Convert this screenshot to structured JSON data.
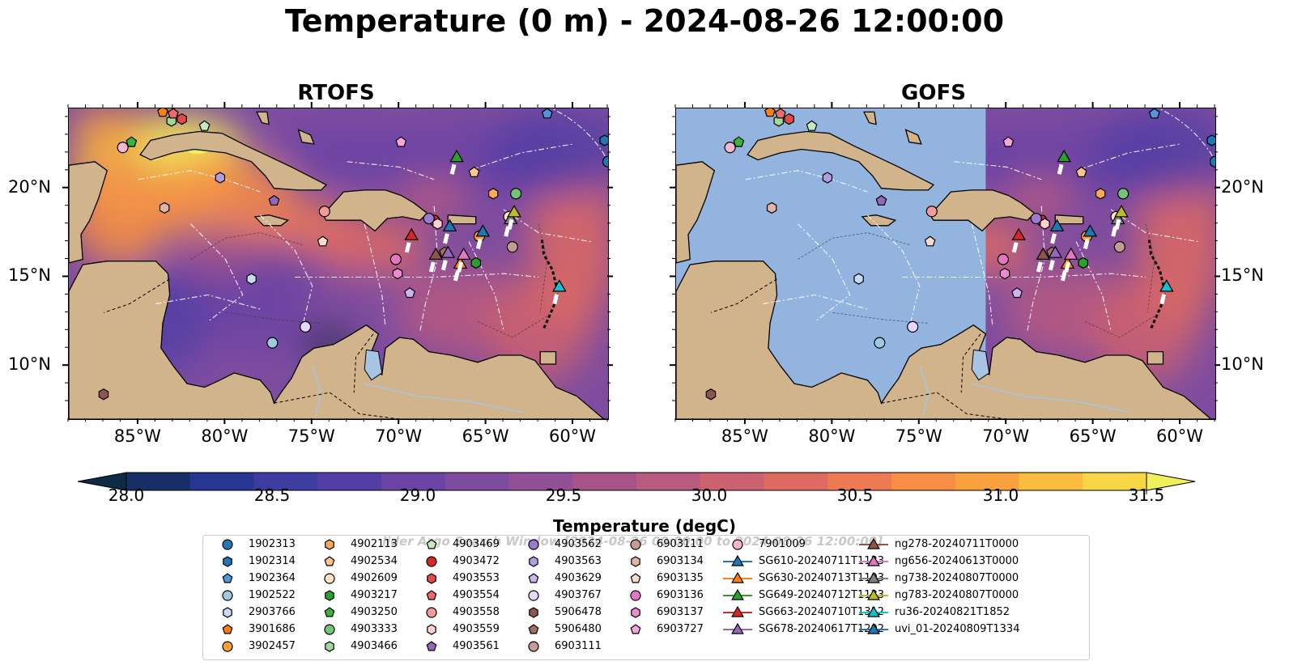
{
  "title": "Temperature (0 m) - 2024-08-26 12:00:00",
  "panels": [
    {
      "id": "rtofs",
      "title": "RTOFS"
    },
    {
      "id": "gofs",
      "title": "GOFS"
    }
  ],
  "axes": {
    "x_ticks": [
      "85°W",
      "80°W",
      "75°W",
      "70°W",
      "65°W",
      "60°W"
    ],
    "y_ticks": [
      "20°N",
      "15°N",
      "10°N"
    ]
  },
  "colorbar": {
    "label": "Temperature (degC)",
    "ticks": [
      "28.0",
      "28.5",
      "29.0",
      "29.5",
      "30.0",
      "30.5",
      "31.0",
      "31.5"
    ],
    "range": [
      28.0,
      31.5
    ],
    "extend": "both",
    "colors": [
      "#0f2a45",
      "#172f66",
      "#263691",
      "#3d3ca1",
      "#533ea6",
      "#6a43a4",
      "#7e4c9f",
      "#914f95",
      "#a55389",
      "#b95a7f",
      "#cc6170",
      "#de6a62",
      "#ee7a53",
      "#f68e46",
      "#f9a23d",
      "#fbbd40",
      "#f7d545",
      "#f0f05a"
    ]
  },
  "watermark": "Glider Argo Search Window [2024-08-26 00:00:00 to 2024-08-26 12:00:00]",
  "watermark_visible": "lider Argo Search Window [2024-08-26 00:00:00 to 2024-08-26 12:00:00]",
  "colors": {
    "land": "#d2b48c",
    "ocean_gofs_fill": "#94b4e0",
    "lake": "#a8c4e4"
  },
  "legend": [
    {
      "label": "1902313",
      "marker": "circle",
      "color": "#1f77b4"
    },
    {
      "label": "1902314",
      "marker": "hexagon",
      "color": "#1f77b4"
    },
    {
      "label": "1902364",
      "marker": "pentagon",
      "color": "#4f97d8"
    },
    {
      "label": "1902522",
      "marker": "circle",
      "color": "#9ecae1"
    },
    {
      "label": "2903766",
      "marker": "hexagon",
      "color": "#c6dbef"
    },
    {
      "label": "3901686",
      "marker": "pentagon",
      "color": "#ff7f0e"
    },
    {
      "label": "3902457",
      "marker": "circle",
      "color": "#ff9f2e"
    },
    {
      "label": "4902113",
      "marker": "hexagon",
      "color": "#ffa85a"
    },
    {
      "label": "4902534",
      "marker": "pentagon",
      "color": "#ffc58f"
    },
    {
      "label": "4902609",
      "marker": "circle",
      "color": "#ffe3c2"
    },
    {
      "label": "4903217",
      "marker": "hexagon",
      "color": "#2ca02c"
    },
    {
      "label": "4903250",
      "marker": "pentagon",
      "color": "#3cb43c"
    },
    {
      "label": "4903333",
      "marker": "circle",
      "color": "#74c476"
    },
    {
      "label": "4903466",
      "marker": "hexagon",
      "color": "#a1d99b"
    },
    {
      "label": "4903469",
      "marker": "pentagon",
      "color": "#c7e9c0"
    },
    {
      "label": "4903472",
      "marker": "circle",
      "color": "#d62728"
    },
    {
      "label": "4903553",
      "marker": "hexagon",
      "color": "#e34a4a"
    },
    {
      "label": "4903554",
      "marker": "pentagon",
      "color": "#ef6a6a"
    },
    {
      "label": "4903558",
      "marker": "circle",
      "color": "#f29b9b"
    },
    {
      "label": "4903559",
      "marker": "hexagon",
      "color": "#fcd0d0"
    },
    {
      "label": "4903561",
      "marker": "pentagon",
      "color": "#9467bd"
    },
    {
      "label": "4903562",
      "marker": "circle",
      "color": "#9c7ad0"
    },
    {
      "label": "4903563",
      "marker": "hexagon",
      "color": "#b59be0"
    },
    {
      "label": "4903629",
      "marker": "pentagon",
      "color": "#cdb5ef"
    },
    {
      "label": "4903767",
      "marker": "circle",
      "color": "#e6d6fa"
    },
    {
      "label": "5906478",
      "marker": "hexagon",
      "color": "#8c564b"
    },
    {
      "label": "5906480",
      "marker": "pentagon",
      "color": "#a0705f"
    },
    {
      "label": "6903111",
      "marker": "circle",
      "color": "#c49c94"
    },
    {
      "label": "6903134",
      "marker": "hexagon",
      "color": "#e0b5a8"
    },
    {
      "label": "6903135",
      "marker": "pentagon",
      "color": "#f5dccf"
    },
    {
      "label": "6903136",
      "marker": "circle",
      "color": "#e377c2"
    },
    {
      "label": "6903137",
      "marker": "hexagon",
      "color": "#ea8ccf"
    },
    {
      "label": "6903727",
      "marker": "pentagon",
      "color": "#f4a6dc"
    },
    {
      "label": "7901009",
      "marker": "circle",
      "color": "#f7b6d2"
    },
    {
      "label": "SG610-20240711T1133",
      "marker": "triangle-line",
      "color": "#1f77b4"
    },
    {
      "label": "SG630-20240713T1103",
      "marker": "triangle-line",
      "color": "#ff7f0e"
    },
    {
      "label": "SG649-20240712T1133",
      "marker": "triangle-line",
      "color": "#2ca02c"
    },
    {
      "label": "SG663-20240710T1312",
      "marker": "triangle-line",
      "color": "#d62728"
    },
    {
      "label": "SG678-20240617T1202",
      "marker": "triangle-line",
      "color": "#9467bd"
    },
    {
      "label": "ng278-20240711T0000",
      "marker": "triangle-line",
      "color": "#8c564b"
    },
    {
      "label": "ng656-20240613T0000",
      "marker": "triangle-line",
      "color": "#e377c2"
    },
    {
      "label": "ng738-20240807T0000",
      "marker": "triangle-line",
      "color": "#7f7f7f"
    },
    {
      "label": "ng783-20240807T0000",
      "marker": "triangle-line",
      "color": "#bcbd22"
    },
    {
      "label": "ru36-20240821T1852",
      "marker": "triangle-line",
      "color": "#17becf"
    },
    {
      "label": "uvi_01-20240809T1334",
      "marker": "triangle-line",
      "color": "#1f77b4"
    }
  ],
  "floats": [
    {
      "label": "1902313",
      "lon": -58.0,
      "lat": 21.5
    },
    {
      "label": "1902314",
      "lon": -58.2,
      "lat": 22.7
    },
    {
      "label": "1902364",
      "lon": -61.5,
      "lat": 24.2
    },
    {
      "label": "1902522",
      "lon": -77.3,
      "lat": 11.3
    },
    {
      "label": "2903766",
      "lon": -78.5,
      "lat": 14.9
    },
    {
      "label": "3901686",
      "lon": -83.6,
      "lat": 24.3
    },
    {
      "label": "3902457",
      "lon": -65.4,
      "lat": 17.3
    },
    {
      "label": "4902113",
      "lon": -64.6,
      "lat": 19.7
    },
    {
      "label": "4902534",
      "lon": -65.7,
      "lat": 20.9
    },
    {
      "label": "4902609",
      "lon": -63.7,
      "lat": 18.4
    },
    {
      "label": "4903217",
      "lon": -65.6,
      "lat": 15.8
    },
    {
      "label": "4903250",
      "lon": -85.4,
      "lat": 22.6
    },
    {
      "label": "4903333",
      "lon": -63.3,
      "lat": 19.7
    },
    {
      "label": "4903466",
      "lon": -83.1,
      "lat": 23.8
    },
    {
      "label": "4903469",
      "lon": -81.2,
      "lat": 23.5
    },
    {
      "label": "4903472",
      "lon": -68.0,
      "lat": 18.2
    },
    {
      "label": "4903553",
      "lon": -82.5,
      "lat": 23.9
    },
    {
      "label": "4903554",
      "lon": -83.0,
      "lat": 24.2
    },
    {
      "label": "4903558",
      "lon": -74.3,
      "lat": 18.7
    },
    {
      "label": "4903559",
      "lon": -67.8,
      "lat": 18.0
    },
    {
      "label": "4903561",
      "lon": -77.2,
      "lat": 19.3
    },
    {
      "label": "4903562",
      "lon": -68.3,
      "lat": 18.3
    },
    {
      "label": "4903563",
      "lon": -80.3,
      "lat": 20.6
    },
    {
      "label": "4903629",
      "lon": -69.4,
      "lat": 14.1
    },
    {
      "label": "4903767",
      "lon": -75.4,
      "lat": 12.2
    },
    {
      "label": "5906478",
      "lon": -87.0,
      "lat": 8.4
    },
    {
      "label": "5906480",
      "lon": -67.4,
      "lat": 16.4
    },
    {
      "label": "6903111",
      "lon": -63.5,
      "lat": 16.7
    },
    {
      "label": "6903134",
      "lon": -83.5,
      "lat": 18.9
    },
    {
      "label": "6903135",
      "lon": -74.4,
      "lat": 17.0
    },
    {
      "label": "6903136",
      "lon": -70.2,
      "lat": 16.0
    },
    {
      "label": "6903137",
      "lon": -70.1,
      "lat": 15.2
    },
    {
      "label": "6903727",
      "lon": -69.9,
      "lat": 22.6
    },
    {
      "label": "7901009",
      "lon": -85.9,
      "lat": 22.3
    }
  ],
  "gliders": [
    {
      "label": "SG610-20240711T1133",
      "lon": -67.1,
      "lat": 17.9
    },
    {
      "label": "SG630-20240713T1103",
      "lon": -66.5,
      "lat": 15.8
    },
    {
      "label": "SG649-20240712T1133",
      "lon": -66.7,
      "lat": 21.8
    },
    {
      "label": "SG663-20240710T1312",
      "lon": -69.3,
      "lat": 17.4
    },
    {
      "label": "SG678-20240617T1202",
      "lon": -67.2,
      "lat": 16.4
    },
    {
      "label": "ng278-20240711T0000",
      "lon": -67.9,
      "lat": 16.3
    },
    {
      "label": "ng656-20240613T0000",
      "lon": -66.3,
      "lat": 16.3
    },
    {
      "label": "ng738-20240807T0000",
      "lon": -63.6,
      "lat": 18.3
    },
    {
      "label": "ng783-20240807T0000",
      "lon": -63.4,
      "lat": 18.7
    },
    {
      "label": "ru36-20240821T1852",
      "lon": -60.8,
      "lat": 14.5
    },
    {
      "label": "uvi_01-20240809T1334",
      "lon": -65.2,
      "lat": 17.6
    }
  ]
}
